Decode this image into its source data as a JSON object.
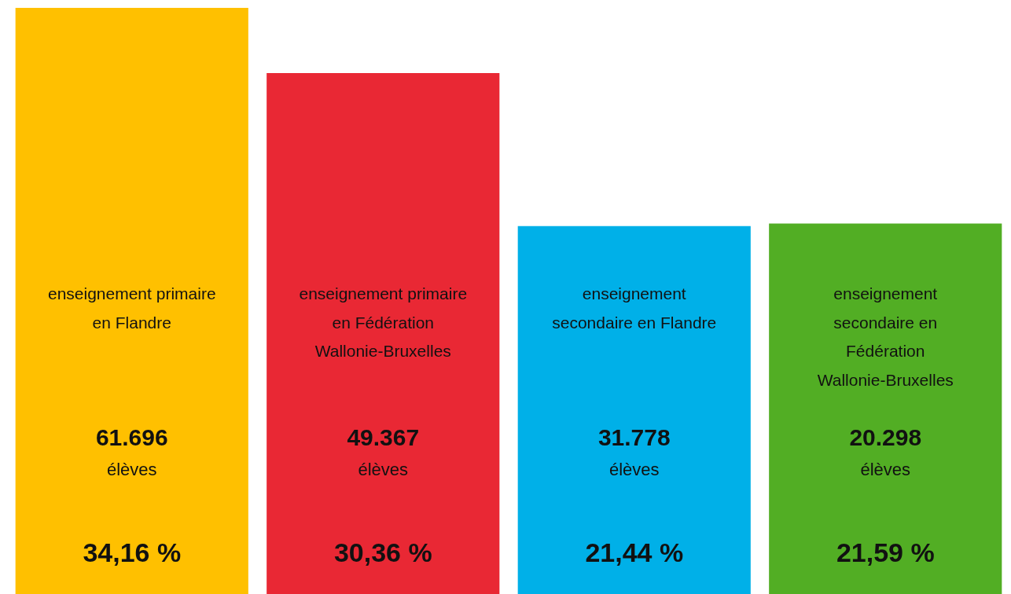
{
  "chart_data": {
    "type": "bar",
    "categories": [
      "enseignement primaire en Flandre",
      "enseignement primaire en Fédération Wallonie-Bruxelles",
      "enseignement secondaire en Flandre",
      "enseignement secondaire en Fédération Wallonie-Bruxelles"
    ],
    "series": [
      {
        "colors": [
          "#ffc000",
          "#e92834",
          "#00b0e8",
          "#52ae24"
        ],
        "values": [
          34.16,
          30.36,
          21.44,
          21.59
        ],
        "value_labels": [
          "34,16 %",
          "30,36 %",
          "21,44 %",
          "21,59 %"
        ]
      }
    ],
    "ylim": [
      0,
      34.16
    ],
    "tick_labels": false,
    "annotations": [
      "61.696 élèves",
      "49.367 élèves",
      "31.778 élèves",
      "20.298 élèves"
    ]
  }
}
